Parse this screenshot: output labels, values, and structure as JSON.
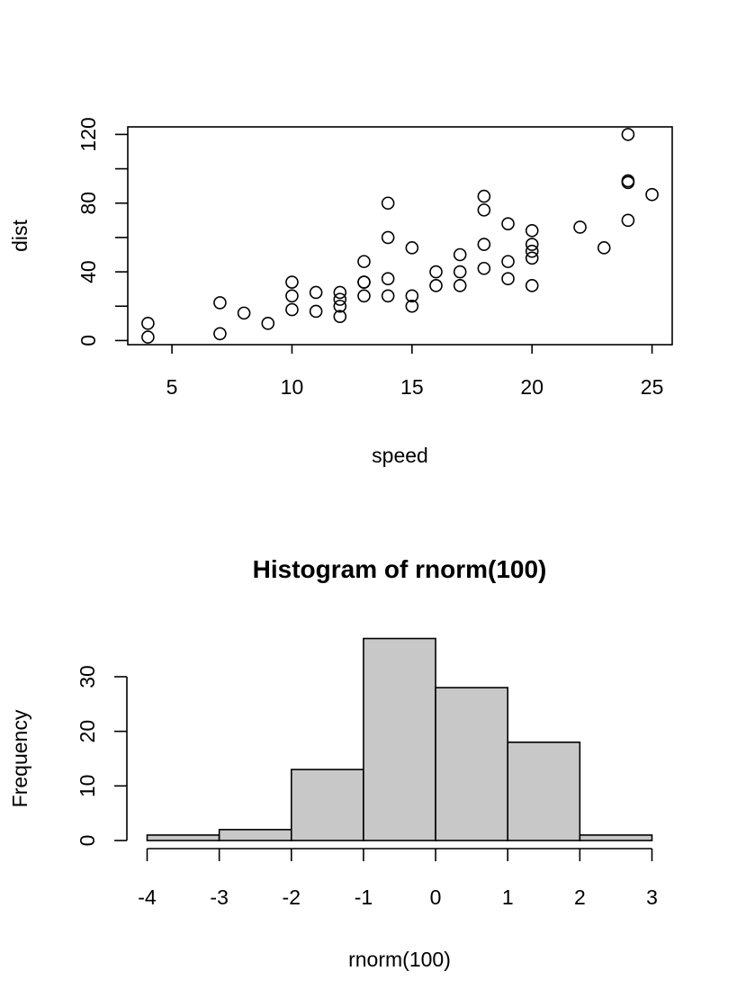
{
  "chart_data": [
    {
      "type": "scatter",
      "title": "",
      "xlabel": "speed",
      "ylabel": "dist",
      "xlim": [
        3.16,
        25.84
      ],
      "ylim": [
        -2.4,
        124.4
      ],
      "x_ticks": [
        5,
        10,
        15,
        20,
        25
      ],
      "y_ticks": [
        0,
        40,
        80,
        120
      ],
      "y_minor_ticks": [
        20,
        60,
        100
      ],
      "grid": false,
      "box": true,
      "x": [
        4,
        4,
        7,
        7,
        8,
        9,
        10,
        10,
        10,
        11,
        11,
        12,
        12,
        12,
        12,
        13,
        13,
        13,
        13,
        14,
        14,
        14,
        14,
        15,
        15,
        15,
        16,
        16,
        17,
        17,
        17,
        18,
        18,
        18,
        18,
        19,
        19,
        19,
        20,
        20,
        20,
        20,
        20,
        22,
        23,
        24,
        24,
        24,
        24,
        25
      ],
      "y": [
        2,
        10,
        4,
        22,
        16,
        10,
        18,
        26,
        34,
        17,
        28,
        14,
        20,
        24,
        28,
        26,
        34,
        34,
        46,
        26,
        36,
        60,
        80,
        20,
        26,
        54,
        32,
        40,
        32,
        40,
        50,
        42,
        56,
        76,
        84,
        36,
        46,
        68,
        32,
        48,
        52,
        56,
        64,
        66,
        54,
        70,
        92,
        93,
        120,
        85
      ]
    },
    {
      "type": "bar",
      "subtype": "histogram",
      "title": "Histogram of rnorm(100)",
      "xlabel": "rnorm(100)",
      "ylabel": "Frequency",
      "bins": [
        [
          -4,
          -3
        ],
        [
          -3,
          -2
        ],
        [
          -2,
          -1
        ],
        [
          -1,
          0
        ],
        [
          0,
          1
        ],
        [
          1,
          2
        ],
        [
          2,
          3
        ]
      ],
      "values": [
        1,
        2,
        13,
        37,
        28,
        18,
        1
      ],
      "x_ticks": [
        -4,
        -3,
        -2,
        -1,
        0,
        1,
        2,
        3
      ],
      "y_ticks": [
        0,
        10,
        20,
        30
      ],
      "grid": false
    }
  ]
}
